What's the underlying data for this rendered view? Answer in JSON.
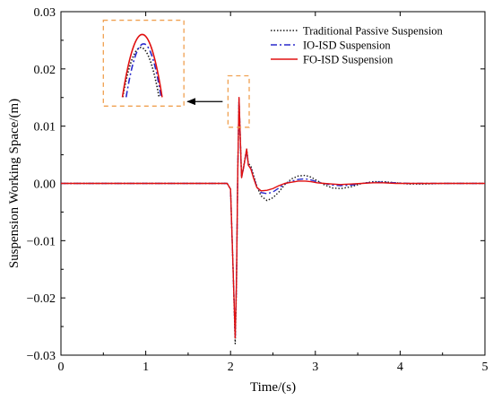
{
  "chart_data": {
    "type": "line",
    "title": "",
    "xlabel": "Time/(s)",
    "ylabel": "Suspension Working Space/(m)",
    "xlim": [
      0,
      5
    ],
    "ylim": [
      -0.03,
      0.03
    ],
    "xticks": [
      0,
      1,
      2,
      3,
      4,
      5
    ],
    "yticks": [
      -0.03,
      -0.02,
      -0.01,
      0.0,
      0.01,
      0.02,
      0.03
    ],
    "xtick_labels": [
      "0",
      "1",
      "2",
      "3",
      "4",
      "5"
    ],
    "ytick_labels": [
      "−0.03",
      "−0.02",
      "−0.01",
      "0.00",
      "0.01",
      "0.02",
      "0.03"
    ],
    "grid": false,
    "legend_position": "top-right",
    "series": [
      {
        "name": "Traditional Passive Suspension",
        "color": "#1a1a1a",
        "dash": "dotted",
        "x": [
          0,
          1.96,
          2.0,
          2.03,
          2.055,
          2.07,
          2.085,
          2.1,
          2.13,
          2.16,
          2.19,
          2.21,
          2.24,
          2.27,
          2.31,
          2.36,
          2.43,
          2.5,
          2.57,
          2.64,
          2.72,
          2.8,
          2.88,
          2.95,
          3.02,
          3.1,
          3.2,
          3.3,
          3.42,
          3.55,
          3.68,
          3.8,
          3.95,
          4.1,
          4.3,
          4.5,
          4.7,
          5.0
        ],
        "y": [
          0,
          0,
          -0.001,
          -0.015,
          -0.028,
          -0.018,
          0.002,
          0.0146,
          0.001,
          0.0035,
          0.006,
          0.0035,
          0.003,
          0.0015,
          -0.0005,
          -0.0022,
          -0.003,
          -0.0025,
          -0.0015,
          -0.0002,
          0.0008,
          0.0013,
          0.0014,
          0.0011,
          0.0005,
          -0.0002,
          -0.0008,
          -0.0009,
          -0.0006,
          0.0,
          0.0003,
          0.0003,
          0.0001,
          -0.0001,
          -0.0001,
          0.0,
          0.0,
          0.0
        ]
      },
      {
        "name": "IO-ISD Suspension",
        "color": "#2a2acc",
        "dash": "dashdot",
        "x": [
          0,
          1.96,
          2.0,
          2.03,
          2.055,
          2.07,
          2.085,
          2.1,
          2.13,
          2.16,
          2.19,
          2.21,
          2.24,
          2.27,
          2.31,
          2.36,
          2.43,
          2.5,
          2.57,
          2.64,
          2.72,
          2.8,
          2.88,
          2.95,
          3.02,
          3.1,
          3.2,
          3.3,
          3.42,
          3.55,
          3.68,
          3.8,
          3.95,
          4.1,
          4.3,
          4.5,
          4.7,
          5.0
        ],
        "y": [
          0,
          0,
          -0.001,
          -0.015,
          -0.027,
          -0.017,
          0.002,
          0.0148,
          0.001,
          0.0032,
          0.0058,
          0.0032,
          0.0026,
          0.0012,
          -0.0006,
          -0.0016,
          -0.0018,
          -0.0015,
          -0.0008,
          -0.0001,
          0.0004,
          0.0007,
          0.0008,
          0.0006,
          0.0003,
          0.0,
          -0.0003,
          -0.0004,
          -0.0003,
          0.0,
          0.0002,
          0.0002,
          0.0001,
          0.0,
          0.0,
          0.0,
          0.0,
          0.0
        ]
      },
      {
        "name": "FO-ISD Suspension",
        "color": "#e01010",
        "dash": "solid",
        "x": [
          0,
          1.96,
          2.0,
          2.03,
          2.055,
          2.07,
          2.085,
          2.1,
          2.13,
          2.16,
          2.19,
          2.21,
          2.24,
          2.27,
          2.31,
          2.36,
          2.43,
          2.5,
          2.57,
          2.64,
          2.72,
          2.8,
          2.88,
          2.95,
          3.02,
          3.1,
          3.2,
          3.3,
          3.42,
          3.55,
          3.68,
          3.8,
          3.95,
          4.1,
          4.3,
          4.5,
          4.7,
          5.0
        ],
        "y": [
          0,
          0,
          -0.001,
          -0.015,
          -0.027,
          -0.017,
          0.002,
          0.015,
          0.001,
          0.0033,
          0.006,
          0.0032,
          0.0025,
          0.001,
          -0.0007,
          -0.0013,
          -0.0012,
          -0.0009,
          -0.0004,
          0.0,
          0.0002,
          0.0004,
          0.0004,
          0.0003,
          0.0001,
          0.0,
          -0.0001,
          -0.0002,
          -0.0001,
          0.0,
          0.0001,
          0.0001,
          0.0,
          0.0,
          0.0,
          0.0,
          0.0,
          0.0
        ]
      }
    ],
    "inset": {
      "description_visible": false,
      "zoom_region_x": [
        1.97,
        2.22
      ],
      "zoom_region_y": [
        0.0098,
        0.0188
      ],
      "inset_x": [
        0.5,
        1.45
      ],
      "inset_y": [
        0.0135,
        0.0285
      ],
      "zoom_x": [
        2.06,
        2.12
      ],
      "zoom_y": [
        0.0138,
        0.0151
      ],
      "box_color": "#f0a050",
      "arrow": "points from zoom region to inset"
    }
  }
}
